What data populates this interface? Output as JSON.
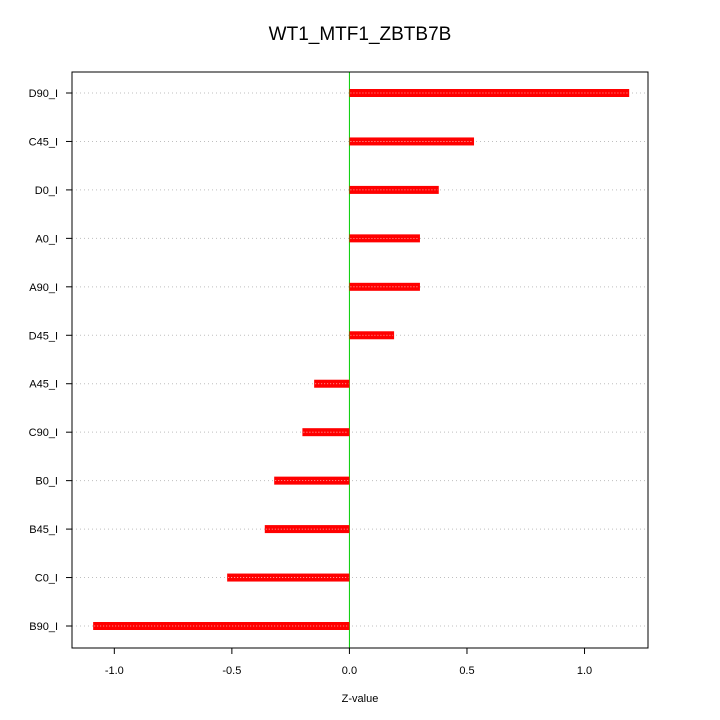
{
  "chart_data": {
    "type": "bar",
    "orientation": "horizontal",
    "title": "WT1_MTF1_ZBTB7B",
    "xlabel": "Z-value",
    "ylabel": "",
    "categories": [
      "B90_I",
      "C0_I",
      "B45_I",
      "B0_I",
      "C90_I",
      "A45_I",
      "D45_I",
      "A90_I",
      "A0_I",
      "D0_I",
      "C45_I",
      "D90_I"
    ],
    "values": [
      -1.09,
      -0.52,
      -0.36,
      -0.32,
      -0.2,
      -0.15,
      0.19,
      0.3,
      0.3,
      0.38,
      0.53,
      1.19
    ],
    "xlim": [
      -1.18,
      1.27
    ],
    "xticks": [
      -1.0,
      -0.5,
      0.0,
      0.5,
      1.0
    ],
    "xtick_labels": [
      "-1.0",
      "-0.5",
      "0.0",
      "0.5",
      "1.0"
    ],
    "reference_line_x": 0,
    "grid": "horizontal dotted",
    "legend": "none",
    "colors": {
      "bar": "#ff0000",
      "bar_center": "#ffcccc",
      "reference_line": "#00cc00",
      "grid": "#bfbfbf",
      "axis": "#000000"
    }
  }
}
